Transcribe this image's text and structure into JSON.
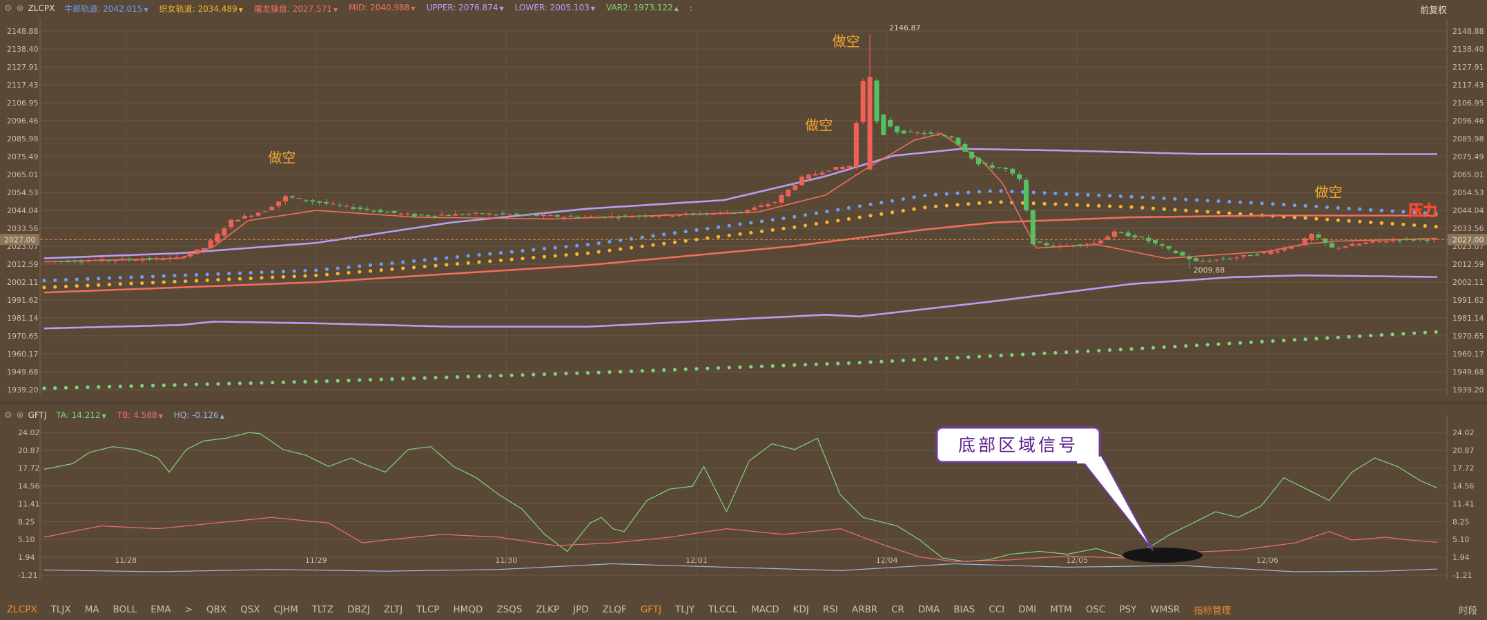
{
  "main_header": {
    "symbol": "ZLCPX",
    "items": [
      {
        "label": "牛郎轨道:",
        "value": "2042.015",
        "color": "#6d9ef0",
        "dir": "▼"
      },
      {
        "label": "织女轨道:",
        "value": "2034.489",
        "color": "#f5b731",
        "dir": "▼"
      },
      {
        "label": "屠龙操盘:",
        "value": "2027.571",
        "color": "#f06e5c",
        "dir": "▼"
      },
      {
        "label": "MID:",
        "value": "2040.988",
        "color": "#f06e5c",
        "dir": "▼"
      },
      {
        "label": "UPPER:",
        "value": "2076.874",
        "color": "#b89ef5",
        "dir": "▼"
      },
      {
        "label": "LOWER:",
        "value": "2005.103",
        "color": "#b89ef5",
        "dir": "▼"
      },
      {
        "label": "VAR2:",
        "value": "1973.122",
        "color": "#7fd67a",
        "dir": "▲"
      }
    ],
    "more": ":",
    "right_label": "前复权"
  },
  "sub_header": {
    "symbol": "GFTJ",
    "items": [
      {
        "label": "TA:",
        "value": "14.212",
        "color": "#7fd67a",
        "dir": "▼"
      },
      {
        "label": "TB:",
        "value": "4.588",
        "color": "#f06e70",
        "dir": "▼"
      },
      {
        "label": "HQ:",
        "value": "-0.126",
        "color": "#9bb8e6",
        "dir": "▲"
      }
    ]
  },
  "indicator_tabs": [
    "ZLCPX",
    "TLJX",
    "MA",
    "BOLL",
    "EMA",
    ">",
    "QBX",
    "QSX",
    "CJHM",
    "TLTZ",
    "DBZJ",
    "ZLTJ",
    "TLCP",
    "HMQD",
    "ZSQS",
    "ZLKP",
    "JPD",
    "ZLQF",
    "GFTJ",
    "TLJY",
    "TLCCL",
    "MACD",
    "KDJ",
    "RSI",
    "ARBR",
    "CR",
    "DMA",
    "BIAS",
    "CCI",
    "DMI",
    "MTM",
    "OSC",
    "PSY",
    "WMSR",
    "指标管理"
  ],
  "active_tabs": [
    "ZLCPX",
    "GFTJ"
  ],
  "bottom_right": "时段",
  "chart_data": [
    {
      "type": "candlestick",
      "title": "ZLCPX",
      "y_ticks": [
        "2148.88",
        "2138.40",
        "2127.91",
        "2117.43",
        "2106.95",
        "2096.46",
        "2085.98",
        "2075.49",
        "2065.01",
        "2054.53",
        "2044.04",
        "2033.56",
        "2023.07",
        "2012.59",
        "2002.11",
        "1991.62",
        "1981.14",
        "1970.65",
        "1960.17",
        "1949.68",
        "1939.20"
      ],
      "ylim": [
        1939.2,
        2148.88
      ],
      "x_ticks": [
        "11/28",
        "11/29",
        "11/30",
        "12/01",
        "12/04",
        "12/05",
        "12/06"
      ],
      "x_tick_index": [
        12,
        40,
        68,
        96,
        124,
        152,
        180
      ],
      "current_price_label": "2027.00",
      "current_price": 2027.0,
      "high_label": "2146.87",
      "low_label": "2009.88",
      "annotations": [
        {
          "text": "做空",
          "idx": 35,
          "price": 2072
        },
        {
          "text": "做空",
          "idx": 114,
          "price": 2091
        },
        {
          "text": "做空",
          "idx": 118,
          "price": 2140
        },
        {
          "text": "做空",
          "idx": 189,
          "price": 2052
        }
      ],
      "pressure_label": "压力",
      "candle_count": 205,
      "series": [
        {
          "name": "牛郎轨道",
          "style": "dots",
          "color": "#6d9ef0",
          "points": [
            [
              0,
              2003
            ],
            [
              40,
              2009
            ],
            [
              80,
              2024
            ],
            [
              110,
              2040
            ],
            [
              130,
              2053
            ],
            [
              140,
              2055.5
            ],
            [
              160,
              2052
            ],
            [
              180,
              2048
            ],
            [
              205,
              2042
            ]
          ]
        },
        {
          "name": "织女轨道",
          "style": "dots",
          "color": "#f5b731",
          "points": [
            [
              0,
              1999
            ],
            [
              40,
              2006
            ],
            [
              80,
              2019
            ],
            [
              110,
              2034
            ],
            [
              130,
              2046
            ],
            [
              140,
              2049
            ],
            [
              160,
              2046
            ],
            [
              180,
              2041
            ],
            [
              205,
              2034.5
            ]
          ]
        },
        {
          "name": "MID",
          "style": "line",
          "color": "#f06e5c",
          "points": [
            [
              0,
              1996
            ],
            [
              40,
              2002
            ],
            [
              80,
              2012
            ],
            [
              110,
              2023
            ],
            [
              130,
              2033
            ],
            [
              140,
              2037
            ],
            [
              160,
              2040
            ],
            [
              180,
              2041
            ],
            [
              205,
              2041
            ]
          ]
        },
        {
          "name": "UPPER",
          "style": "line",
          "color": "#b89ef5",
          "points": [
            [
              0,
              2016
            ],
            [
              20,
              2019
            ],
            [
              40,
              2025
            ],
            [
              60,
              2037
            ],
            [
              80,
              2045
            ],
            [
              100,
              2050
            ],
            [
              115,
              2064
            ],
            [
              125,
              2076
            ],
            [
              135,
              2080
            ],
            [
              150,
              2079
            ],
            [
              170,
              2077
            ],
            [
              205,
              2076.9
            ]
          ]
        },
        {
          "name": "LOWER",
          "style": "line",
          "color": "#b89ef5",
          "points": [
            [
              0,
              1975
            ],
            [
              20,
              1977
            ],
            [
              25,
              1979
            ],
            [
              40,
              1978
            ],
            [
              60,
              1976
            ],
            [
              80,
              1976
            ],
            [
              90,
              1978
            ],
            [
              110,
              1982
            ],
            [
              115,
              1983
            ],
            [
              120,
              1982
            ],
            [
              140,
              1991
            ],
            [
              160,
              2001
            ],
            [
              175,
              2005
            ],
            [
              185,
              2006
            ],
            [
              205,
              2005.1
            ]
          ]
        },
        {
          "name": "VAR2",
          "style": "dots",
          "color": "#7fd67a",
          "points": [
            [
              0,
              1940
            ],
            [
              40,
              1944
            ],
            [
              80,
              1949
            ],
            [
              120,
              1955
            ],
            [
              160,
              1963
            ],
            [
              205,
              1973
            ]
          ]
        },
        {
          "name": "屠龙操盘",
          "style": "line",
          "color": "#f06e5c",
          "points": [
            [
              0,
              2014
            ],
            [
              20,
              2016
            ],
            [
              25,
              2023
            ],
            [
              30,
              2038
            ],
            [
              40,
              2044
            ],
            [
              55,
              2040
            ],
            [
              75,
              2039
            ],
            [
              90,
              2041
            ],
            [
              105,
              2043
            ],
            [
              115,
              2053
            ],
            [
              120,
              2066
            ],
            [
              128,
              2085
            ],
            [
              132,
              2089
            ],
            [
              138,
              2073
            ],
            [
              141,
              2060
            ],
            [
              146,
              2022
            ],
            [
              155,
              2024
            ],
            [
              165,
              2016
            ],
            [
              180,
              2020
            ],
            [
              185,
              2024
            ],
            [
              190,
              2026
            ],
            [
              205,
              2027.6
            ]
          ]
        }
      ],
      "candles_path": [
        [
          0,
          2014
        ],
        [
          20,
          2016
        ],
        [
          24,
          2022
        ],
        [
          28,
          2038
        ],
        [
          33,
          2044
        ],
        [
          36,
          2052
        ],
        [
          45,
          2046
        ],
        [
          55,
          2041
        ],
        [
          65,
          2042
        ],
        [
          80,
          2040
        ],
        [
          90,
          2041
        ],
        [
          97,
          2042
        ],
        [
          103,
          2043
        ],
        [
          108,
          2049
        ],
        [
          112,
          2063
        ],
        [
          116,
          2068
        ],
        [
          119,
          2070
        ],
        [
          121,
          2120
        ],
        [
          123,
          2100
        ],
        [
          126,
          2090
        ],
        [
          130,
          2089
        ],
        [
          134,
          2087
        ],
        [
          138,
          2071
        ],
        [
          142,
          2068
        ],
        [
          144,
          2062
        ],
        [
          146,
          2025
        ],
        [
          150,
          2023
        ],
        [
          155,
          2025
        ],
        [
          158,
          2031
        ],
        [
          162,
          2028
        ],
        [
          166,
          2021
        ],
        [
          170,
          2014
        ],
        [
          175,
          2016
        ],
        [
          180,
          2019
        ],
        [
          185,
          2024
        ],
        [
          187,
          2030
        ],
        [
          190,
          2022
        ],
        [
          195,
          2025
        ],
        [
          200,
          2027
        ],
        [
          205,
          2027
        ]
      ]
    },
    {
      "type": "line",
      "title": "GFTJ",
      "y_ticks": [
        "24.02",
        "20.87",
        "17.72",
        "14.56",
        "11.41",
        "8.25",
        "5.10",
        "1.94",
        "-1.21"
      ],
      "ylim": [
        -1.21,
        24.02
      ],
      "callout": "底部区域信号",
      "series": [
        {
          "name": "TA",
          "color": "#7fd67a",
          "points": [
            [
              0,
              17.5
            ],
            [
              5,
              18.5
            ],
            [
              8,
              20.5
            ],
            [
              12,
              21.5
            ],
            [
              16,
              21
            ],
            [
              20,
              19.5
            ],
            [
              22,
              17
            ],
            [
              25,
              21
            ],
            [
              28,
              22.5
            ],
            [
              32,
              23
            ],
            [
              36,
              24
            ],
            [
              38,
              23.8
            ],
            [
              42,
              21
            ],
            [
              46,
              20
            ],
            [
              50,
              18
            ],
            [
              54,
              19.5
            ],
            [
              56,
              18.5
            ],
            [
              60,
              17
            ],
            [
              64,
              21
            ],
            [
              68,
              21.5
            ],
            [
              72,
              18
            ],
            [
              76,
              16
            ],
            [
              80,
              13
            ],
            [
              84,
              10.5
            ],
            [
              88,
              6
            ],
            [
              92,
              3
            ],
            [
              96,
              8
            ],
            [
              98,
              9
            ],
            [
              100,
              7
            ],
            [
              102,
              6.5
            ],
            [
              106,
              12
            ],
            [
              110,
              14
            ],
            [
              114,
              14.5
            ],
            [
              116,
              18
            ],
            [
              120,
              10
            ],
            [
              124,
              19
            ],
            [
              128,
              22
            ],
            [
              132,
              21
            ],
            [
              136,
              23
            ],
            [
              140,
              13
            ],
            [
              144,
              9
            ],
            [
              150,
              7.5
            ],
            [
              154,
              5
            ],
            [
              158,
              1.8
            ],
            [
              162,
              1.2
            ],
            [
              166,
              1.5
            ],
            [
              170,
              2.5
            ],
            [
              175,
              3
            ],
            [
              180,
              2.5
            ],
            [
              185,
              3.5
            ],
            [
              190,
              2
            ],
            [
              194,
              3.5
            ],
            [
              198,
              6
            ],
            [
              202,
              8
            ],
            [
              206,
              10
            ],
            [
              210,
              9
            ],
            [
              214,
              11
            ],
            [
              218,
              16
            ],
            [
              222,
              14
            ],
            [
              226,
              12
            ],
            [
              230,
              17
            ],
            [
              234,
              19.5
            ],
            [
              238,
              18
            ],
            [
              242,
              15.5
            ],
            [
              245,
              14.2
            ]
          ]
        },
        {
          "name": "TB",
          "color": "#f06e70",
          "points": [
            [
              0,
              5.5
            ],
            [
              10,
              7.5
            ],
            [
              20,
              7
            ],
            [
              30,
              8
            ],
            [
              40,
              9
            ],
            [
              50,
              8
            ],
            [
              56,
              4.5
            ],
            [
              60,
              5
            ],
            [
              70,
              6
            ],
            [
              80,
              5.5
            ],
            [
              90,
              4
            ],
            [
              100,
              4.5
            ],
            [
              110,
              5.5
            ],
            [
              120,
              7
            ],
            [
              130,
              6
            ],
            [
              140,
              7
            ],
            [
              148,
              4
            ],
            [
              154,
              2
            ],
            [
              160,
              1.2
            ],
            [
              170,
              1.5
            ],
            [
              180,
              2.2
            ],
            [
              190,
              1.8
            ],
            [
              200,
              2.8
            ],
            [
              210,
              3.2
            ],
            [
              220,
              4.5
            ],
            [
              226,
              6.5
            ],
            [
              230,
              5
            ],
            [
              236,
              5.5
            ],
            [
              240,
              5
            ],
            [
              245,
              4.6
            ]
          ]
        },
        {
          "name": "HQ",
          "color": "#9bb8e6",
          "points": [
            [
              0,
              -0.3
            ],
            [
              20,
              -0.6
            ],
            [
              40,
              -0.2
            ],
            [
              60,
              -0.5
            ],
            [
              80,
              -0.2
            ],
            [
              100,
              0.8
            ],
            [
              120,
              0.2
            ],
            [
              140,
              -0.4
            ],
            [
              160,
              0.8
            ],
            [
              180,
              0.2
            ],
            [
              200,
              0.5
            ],
            [
              220,
              -0.6
            ],
            [
              235,
              -0.5
            ],
            [
              245,
              -0.13
            ]
          ]
        }
      ]
    }
  ]
}
